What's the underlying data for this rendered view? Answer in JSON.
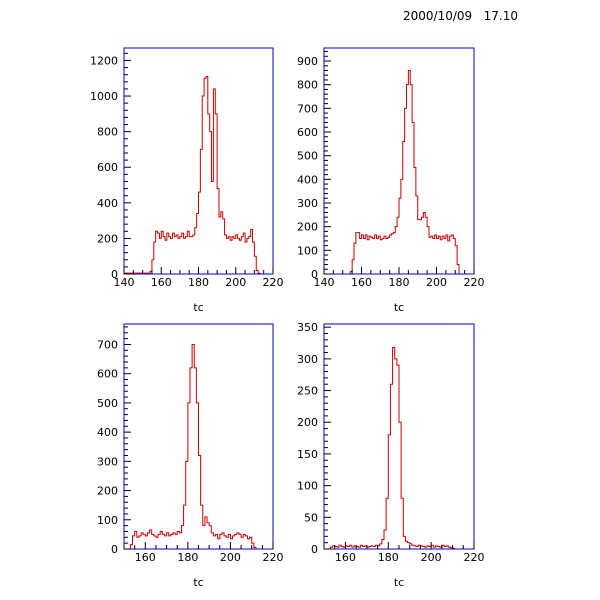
{
  "header": {
    "timestamp": "2000/10/09   17.10"
  },
  "colors": {
    "frame": "#0000cc",
    "histogram": "#cc0000",
    "text": "#000000"
  },
  "chart_data": [
    {
      "type": "histogram",
      "xlabel": "tc",
      "xlim": [
        140,
        220
      ],
      "ylim": [
        0,
        1270
      ],
      "x_ticks": [
        140,
        160,
        180,
        200,
        220
      ],
      "y_ticks": [
        0,
        200,
        400,
        600,
        800,
        1000,
        1200
      ],
      "bin_edges_start": 140,
      "bin_width": 1,
      "values": [
        5,
        5,
        5,
        5,
        5,
        5,
        5,
        5,
        5,
        5,
        5,
        5,
        5,
        5,
        15,
        80,
        180,
        240,
        230,
        200,
        240,
        210,
        190,
        230,
        210,
        200,
        230,
        210,
        220,
        200,
        210,
        230,
        200,
        210,
        240,
        210,
        210,
        220,
        260,
        340,
        460,
        700,
        1000,
        1100,
        1110,
        900,
        800,
        520,
        1040,
        900,
        480,
        320,
        350,
        310,
        220,
        200,
        210,
        190,
        210,
        200,
        220,
        200,
        190,
        210,
        230,
        180,
        200,
        210,
        250,
        180,
        100,
        20,
        5,
        0,
        0,
        0,
        0,
        0,
        0,
        0
      ]
    },
    {
      "type": "histogram",
      "xlabel": "tc",
      "xlim": [
        140,
        220
      ],
      "ylim": [
        0,
        955
      ],
      "x_ticks": [
        140,
        160,
        180,
        200,
        220
      ],
      "y_ticks": [
        0,
        100,
        200,
        300,
        400,
        500,
        600,
        700,
        800,
        900
      ],
      "bin_edges_start": 140,
      "bin_width": 1,
      "values": [
        0,
        0,
        0,
        0,
        0,
        0,
        0,
        0,
        0,
        0,
        0,
        0,
        0,
        0,
        10,
        60,
        130,
        175,
        175,
        150,
        165,
        150,
        165,
        145,
        160,
        155,
        150,
        165,
        150,
        160,
        145,
        150,
        160,
        150,
        155,
        165,
        170,
        175,
        200,
        240,
        320,
        400,
        560,
        700,
        800,
        860,
        800,
        640,
        450,
        330,
        230,
        230,
        240,
        260,
        240,
        200,
        155,
        160,
        150,
        165,
        150,
        160,
        145,
        160,
        150,
        165,
        140,
        160,
        165,
        150,
        120,
        40,
        0,
        0,
        0,
        0,
        0,
        0,
        0,
        0
      ]
    },
    {
      "type": "histogram",
      "xlabel": "tc",
      "xlim": [
        150,
        220
      ],
      "ylim": [
        0,
        770
      ],
      "x_ticks": [
        160,
        180,
        200,
        220
      ],
      "y_ticks": [
        0,
        100,
        200,
        300,
        400,
        500,
        600,
        700
      ],
      "bin_edges_start": 150,
      "bin_width": 1,
      "values": [
        0,
        0,
        0,
        15,
        45,
        60,
        40,
        45,
        55,
        50,
        45,
        55,
        65,
        50,
        45,
        40,
        50,
        60,
        50,
        45,
        55,
        45,
        50,
        55,
        50,
        60,
        55,
        80,
        150,
        300,
        500,
        620,
        700,
        620,
        500,
        320,
        150,
        80,
        110,
        90,
        80,
        55,
        45,
        50,
        35,
        50,
        55,
        45,
        40,
        50,
        35,
        45,
        50,
        55,
        50,
        40,
        50,
        45,
        35,
        40,
        20,
        5,
        0,
        0,
        0,
        0,
        0,
        0,
        0,
        0
      ]
    },
    {
      "type": "histogram",
      "xlabel": "tc",
      "xlim": [
        150,
        220
      ],
      "ylim": [
        0,
        355
      ],
      "x_ticks": [
        160,
        180,
        200,
        220
      ],
      "y_ticks": [
        0,
        50,
        100,
        150,
        200,
        250,
        300,
        350
      ],
      "bin_edges_start": 150,
      "bin_width": 1,
      "values": [
        0,
        0,
        0,
        3,
        5,
        4,
        3,
        6,
        4,
        3,
        5,
        4,
        6,
        3,
        5,
        4,
        3,
        6,
        4,
        5,
        3,
        4,
        5,
        4,
        6,
        5,
        8,
        15,
        30,
        80,
        180,
        260,
        318,
        300,
        290,
        200,
        80,
        20,
        12,
        10,
        8,
        6,
        5,
        4,
        6,
        5,
        4,
        3,
        5,
        4,
        6,
        3,
        5,
        4,
        3,
        6,
        4,
        5,
        3,
        2,
        1,
        0,
        0,
        0,
        0,
        0,
        0,
        0,
        0,
        0
      ]
    }
  ]
}
